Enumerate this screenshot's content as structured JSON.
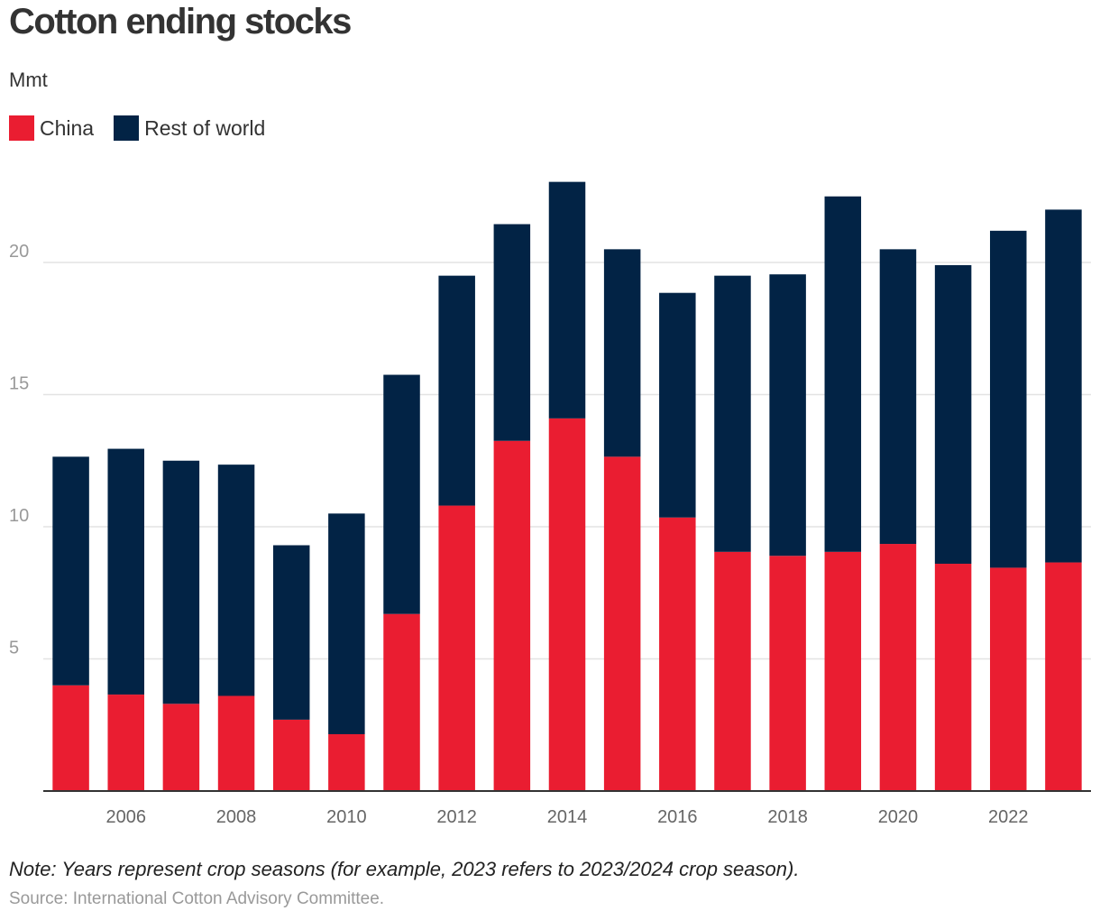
{
  "chart_data": {
    "type": "bar",
    "stacked": true,
    "title": "Cotton ending stocks",
    "subtitle": "Mmt",
    "xlabel": "",
    "ylabel": "",
    "categories": [
      2005,
      2006,
      2007,
      2008,
      2009,
      2010,
      2011,
      2012,
      2013,
      2014,
      2015,
      2016,
      2017,
      2018,
      2019,
      2020,
      2021,
      2022,
      2023
    ],
    "x_tick_labels": [
      "2006",
      "2008",
      "2010",
      "2012",
      "2014",
      "2016",
      "2018",
      "2020",
      "2022"
    ],
    "y_ticks": [
      5,
      10,
      15,
      20
    ],
    "ylim": [
      0,
      23
    ],
    "grid": true,
    "legend_position": "top-left",
    "series": [
      {
        "name": "China",
        "color": "#ea1d31",
        "values": [
          4.0,
          3.65,
          3.3,
          3.6,
          2.7,
          2.15,
          6.7,
          10.8,
          13.25,
          14.1,
          12.65,
          10.35,
          9.05,
          8.9,
          9.05,
          9.35,
          8.6,
          8.45,
          8.65
        ]
      },
      {
        "name": "Rest of world",
        "color": "#022345",
        "values": [
          8.65,
          9.3,
          9.2,
          8.75,
          6.6,
          8.35,
          9.05,
          8.7,
          8.2,
          8.95,
          7.85,
          8.5,
          10.45,
          10.65,
          13.45,
          11.15,
          11.3,
          12.75,
          13.35
        ]
      }
    ]
  },
  "note": "Note: Years represent crop seasons (for example, 2023 refers to 2023/2024 crop season).",
  "source": "Source: International Cotton Advisory Committee."
}
